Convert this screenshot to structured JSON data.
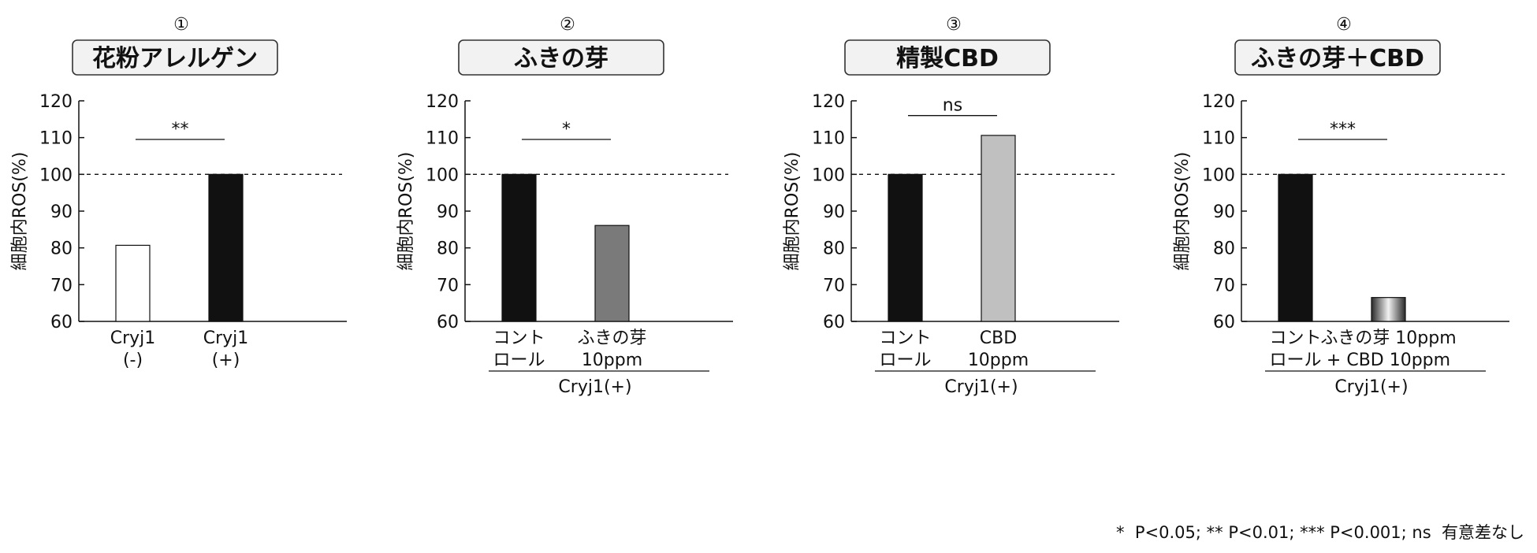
{
  "chart_data": [
    {
      "type": "bar",
      "panel_number": "①",
      "title": "花粉アレルゲン",
      "ylabel": "細胞内ROS(%)",
      "ylim": [
        60,
        120
      ],
      "yticks": [
        60,
        70,
        80,
        90,
        100,
        110,
        120
      ],
      "reference_line": 100,
      "categories": [
        [
          "Cryj1",
          "(-)"
        ],
        [
          "Cryj1",
          "(+)"
        ]
      ],
      "values": [
        80.7,
        100
      ],
      "bar_colors": [
        "#ffffff",
        "#111111"
      ],
      "group_label": "",
      "significance": "**",
      "significance_y": 109.5
    },
    {
      "type": "bar",
      "panel_number": "②",
      "title": "ふきの芽",
      "ylabel": "細胞内ROS(%)",
      "ylim": [
        60,
        120
      ],
      "yticks": [
        60,
        70,
        80,
        90,
        100,
        110,
        120
      ],
      "reference_line": 100,
      "categories": [
        [
          "コント",
          "ロール"
        ],
        [
          "ふきの芽",
          "10ppm"
        ]
      ],
      "values": [
        100,
        86.1
      ],
      "bar_colors": [
        "#111111",
        "#7a7a7a"
      ],
      "group_label": "Cryj1(+)",
      "significance": "*",
      "significance_y": 109.5
    },
    {
      "type": "bar",
      "panel_number": "③",
      "title": "精製CBD",
      "ylabel": "細胞内ROS(%)",
      "ylim": [
        60,
        120
      ],
      "yticks": [
        60,
        70,
        80,
        90,
        100,
        110,
        120
      ],
      "reference_line": 100,
      "categories": [
        [
          "コント",
          "ロール"
        ],
        [
          "CBD",
          "10ppm"
        ]
      ],
      "values": [
        100,
        110.6
      ],
      "bar_colors": [
        "#111111",
        "#c0c0c0"
      ],
      "group_label": "Cryj1(+)",
      "significance": "ns",
      "significance_y": 116
    },
    {
      "type": "bar",
      "panel_number": "④",
      "title": "ふきの芽＋CBD",
      "ylabel": "細胞内ROS(%)",
      "ylim": [
        60,
        120
      ],
      "yticks": [
        60,
        70,
        80,
        90,
        100,
        110,
        120
      ],
      "reference_line": 100,
      "categories": [
        [
          "コント",
          "ロール"
        ],
        [
          "ふきの芽 10ppm",
          "+ CBD 10ppm"
        ]
      ],
      "values": [
        100,
        66.5
      ],
      "bar_colors": [
        "#111111",
        "gradient"
      ],
      "group_label": "Cryj1(+)",
      "significance": "***",
      "significance_y": 109.5
    }
  ],
  "footnote": "*  P<0.05; ** P<0.01; *** P<0.001; ns  有意差なし"
}
